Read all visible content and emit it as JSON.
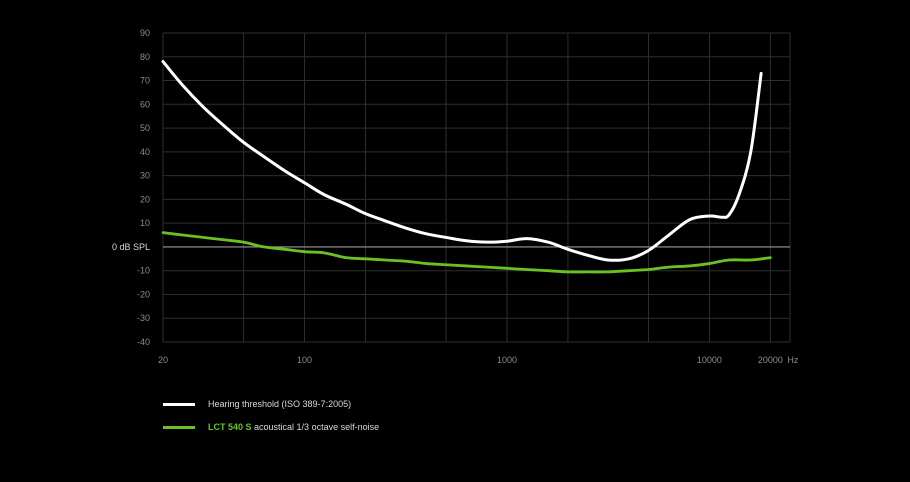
{
  "chart_data": {
    "type": "line",
    "xscale": "log",
    "xlim": [
      20,
      25000
    ],
    "ylim": [
      -40,
      90
    ],
    "grid": true,
    "x_ticks": [
      {
        "value": 20,
        "label": "20"
      },
      {
        "value": 100,
        "label": "100"
      },
      {
        "value": 1000,
        "label": "1000"
      },
      {
        "value": 10000,
        "label": "10000"
      },
      {
        "value": 20000,
        "label": "20000"
      }
    ],
    "x_unit": "Hz",
    "y_ticks": [
      90,
      80,
      70,
      60,
      50,
      40,
      30,
      20,
      10,
      -10,
      -20,
      -30,
      -40
    ],
    "zero_label": "0 dB SPL",
    "series": [
      {
        "name": "Hearing threshold (ISO 389-7:2005)",
        "color": "#ffffff",
        "x": [
          20,
          25,
          31.5,
          40,
          50,
          63,
          80,
          100,
          125,
          160,
          200,
          250,
          315,
          400,
          500,
          630,
          800,
          1000,
          1250,
          1600,
          2000,
          2500,
          3150,
          4000,
          5000,
          6300,
          8000,
          10000,
          11500,
          12500,
          14000,
          16000,
          18000
        ],
        "y": [
          78,
          68,
          59,
          51,
          44,
          38,
          32,
          27,
          22,
          18,
          14,
          11,
          8,
          5.5,
          4,
          2.6,
          2,
          2.4,
          3.5,
          2,
          -1,
          -3.5,
          -5.5,
          -5,
          -1.5,
          5,
          11.5,
          13,
          12.5,
          13.5,
          22,
          40,
          73
        ]
      },
      {
        "name_prefix": "LCT 540 S",
        "name": "acoustical 1/3 octave self-noise",
        "color": "#6bc024",
        "x": [
          20,
          25,
          31.5,
          40,
          50,
          63,
          80,
          100,
          125,
          160,
          200,
          250,
          315,
          400,
          500,
          630,
          800,
          1000,
          1250,
          1600,
          2000,
          2500,
          3150,
          4000,
          5000,
          6300,
          8000,
          10000,
          12500,
          16000,
          20000
        ],
        "y": [
          6,
          5,
          4,
          3,
          2,
          0,
          -1,
          -2,
          -2.5,
          -4.5,
          -5,
          -5.5,
          -6,
          -7,
          -7.5,
          -8,
          -8.5,
          -9,
          -9.5,
          -10,
          -10.5,
          -10.5,
          -10.5,
          -10,
          -9.5,
          -8.5,
          -8,
          -7,
          -5.5,
          -5.5,
          -4.5
        ]
      }
    ]
  }
}
